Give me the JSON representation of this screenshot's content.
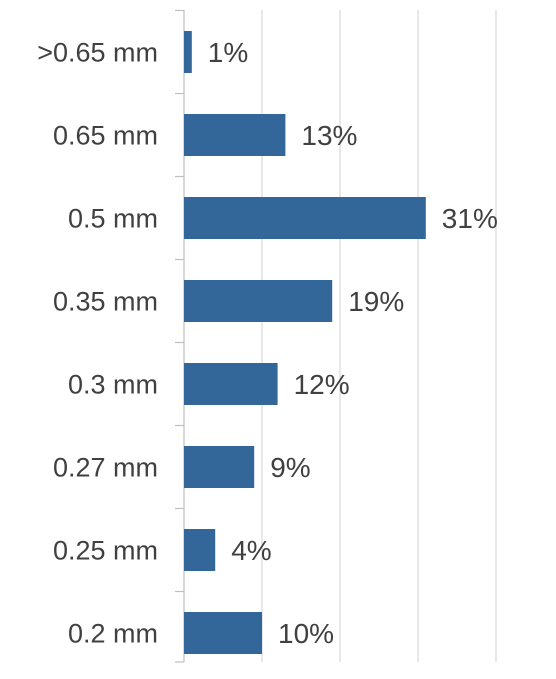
{
  "chart_data": {
    "type": "bar",
    "orientation": "horizontal",
    "categories": [
      ">0.65 mm",
      "0.65 mm",
      "0.5 mm",
      "0.35 mm",
      "0.3 mm",
      "0.27 mm",
      "0.25 mm",
      "0.2 mm"
    ],
    "values": [
      1,
      13,
      31,
      19,
      12,
      9,
      4,
      10
    ],
    "value_labels": [
      "1%",
      "13%",
      "31%",
      "19%",
      "12%",
      "9%",
      "4%",
      "10%"
    ],
    "value_unit": "%",
    "title": "",
    "xlabel": "",
    "ylabel": "",
    "xlim": [
      0,
      40
    ],
    "gridlines": [
      0,
      10,
      20,
      30,
      40
    ],
    "grid": true,
    "legend": "none",
    "colors": {
      "bar": "#336699",
      "grid": "#d9d9d9",
      "label": "#404040",
      "axis": "#bfbfbf"
    }
  }
}
